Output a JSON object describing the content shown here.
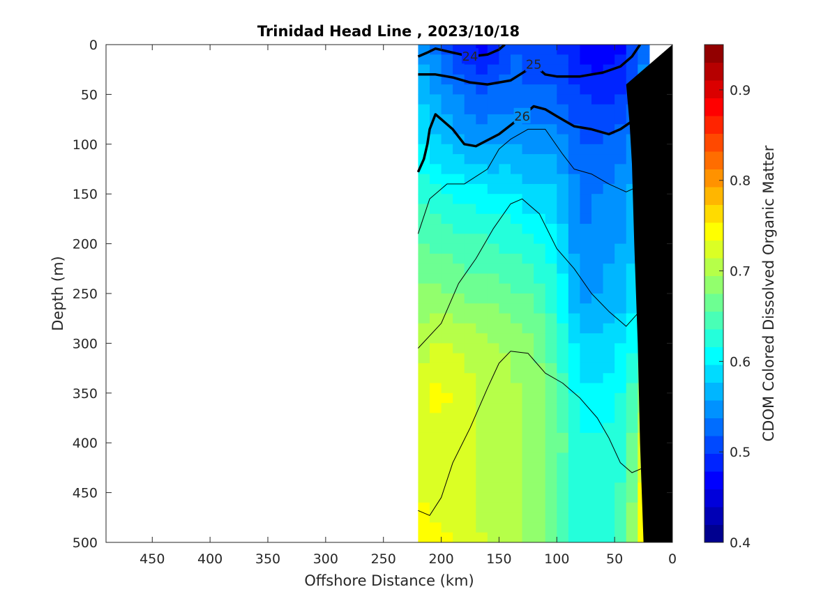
{
  "chart_data": {
    "type": "heatmap",
    "title": "Trinidad Head Line , 2023/10/18",
    "xlabel": "Offshore Distance (km)",
    "ylabel": "Depth (m)",
    "colorbar_label": "CDOM Colored Dissolved Organic Matter",
    "xlim": [
      490,
      0
    ],
    "ylim": [
      0,
      500
    ],
    "x_reversed": true,
    "y_reversed": true,
    "x_ticks": [
      "450",
      "400",
      "350",
      "300",
      "250",
      "200",
      "150",
      "100",
      "50",
      "0"
    ],
    "y_ticks": [
      "0",
      "50",
      "100",
      "150",
      "200",
      "250",
      "300",
      "350",
      "400",
      "450",
      "500"
    ],
    "colorbar_ticks": [
      "0.4",
      "0.5",
      "0.6",
      "0.7",
      "0.8",
      "0.9"
    ],
    "clim": [
      0.4,
      0.95
    ],
    "colormap": [
      "#00008f",
      "#0000b5",
      "#0000db",
      "#0000ff",
      "#0024ff",
      "#0049ff",
      "#006dff",
      "#0092ff",
      "#00b6ff",
      "#00dbff",
      "#00ffff",
      "#24ffdb",
      "#49ffb6",
      "#6dff92",
      "#92ff6d",
      "#b6ff49",
      "#dbff24",
      "#ffff00",
      "#ffdb00",
      "#ffb600",
      "#ff9200",
      "#ff6d00",
      "#ff4900",
      "#ff2400",
      "#ff0000",
      "#db0000",
      "#b60000",
      "#920000"
    ],
    "data_extent_km": [
      220,
      20
    ],
    "columns_km": [
      220,
      200,
      180,
      160,
      140,
      120,
      100,
      80,
      60,
      40,
      20
    ],
    "depths_m": [
      0,
      50,
      100,
      150,
      200,
      250,
      300,
      350,
      400,
      450,
      500
    ],
    "values": [
      [
        0.56,
        0.52,
        0.48,
        0.47,
        0.52,
        0.5,
        0.5,
        0.47,
        0.46,
        0.48,
        0.55
      ],
      [
        0.58,
        0.55,
        0.53,
        0.52,
        0.53,
        0.52,
        0.52,
        0.5,
        0.49,
        0.5,
        0.56
      ],
      [
        0.6,
        0.58,
        0.56,
        0.55,
        0.56,
        0.55,
        0.55,
        0.52,
        0.52,
        0.53,
        0.58
      ],
      [
        0.63,
        0.62,
        0.61,
        0.6,
        0.6,
        0.58,
        0.58,
        0.53,
        0.54,
        0.55,
        0.6
      ],
      [
        0.66,
        0.65,
        0.64,
        0.64,
        0.63,
        0.62,
        0.6,
        0.54,
        0.55,
        0.56,
        0.61
      ],
      [
        0.68,
        0.68,
        0.67,
        0.67,
        0.66,
        0.65,
        0.62,
        0.55,
        0.56,
        0.57,
        0.62
      ],
      [
        0.7,
        0.72,
        0.71,
        0.7,
        0.69,
        0.68,
        0.64,
        0.58,
        0.58,
        0.6,
        0.65
      ],
      [
        0.73,
        0.74,
        0.72,
        0.71,
        0.7,
        0.69,
        0.66,
        0.6,
        0.6,
        0.62,
        0.7
      ],
      [
        0.72,
        0.73,
        0.72,
        0.71,
        0.7,
        0.69,
        0.67,
        0.62,
        0.62,
        0.63,
        0.75
      ],
      [
        0.73,
        0.72,
        0.72,
        0.71,
        0.7,
        0.69,
        0.66,
        0.62,
        0.63,
        0.64,
        0.77
      ],
      [
        0.76,
        0.74,
        0.73,
        0.71,
        0.7,
        0.69,
        0.66,
        0.62,
        0.63,
        0.65,
        0.78
      ]
    ],
    "density_contours": [
      {
        "label": "24",
        "bold": true,
        "points": [
          [
            220,
            12
          ],
          [
            212,
            8
          ],
          [
            205,
            4
          ],
          [
            190,
            8
          ],
          [
            175,
            12
          ],
          [
            160,
            10
          ],
          [
            150,
            5
          ],
          [
            145,
            0
          ]
        ]
      },
      {
        "label": "25",
        "bold": true,
        "points": [
          [
            220,
            30
          ],
          [
            205,
            30
          ],
          [
            190,
            33
          ],
          [
            175,
            38
          ],
          [
            160,
            40
          ],
          [
            140,
            36
          ],
          [
            125,
            25
          ],
          [
            120,
            20
          ],
          [
            110,
            30
          ],
          [
            100,
            32
          ],
          [
            80,
            32
          ],
          [
            60,
            28
          ],
          [
            45,
            22
          ],
          [
            35,
            12
          ],
          [
            28,
            0
          ]
        ]
      },
      {
        "label": "26",
        "bold": true,
        "points": [
          [
            220,
            128
          ],
          [
            215,
            115
          ],
          [
            212,
            100
          ],
          [
            210,
            85
          ],
          [
            205,
            70
          ],
          [
            200,
            75
          ],
          [
            190,
            85
          ],
          [
            180,
            100
          ],
          [
            170,
            102
          ],
          [
            150,
            90
          ],
          [
            130,
            72
          ],
          [
            120,
            62
          ],
          [
            110,
            65
          ],
          [
            100,
            72
          ],
          [
            85,
            82
          ],
          [
            70,
            85
          ],
          [
            55,
            90
          ],
          [
            45,
            85
          ],
          [
            35,
            77
          ],
          [
            25,
            82
          ],
          [
            15,
            88
          ]
        ]
      },
      {
        "label": "",
        "bold": false,
        "points": [
          [
            220,
            190
          ],
          [
            210,
            155
          ],
          [
            195,
            140
          ],
          [
            180,
            140
          ],
          [
            160,
            125
          ],
          [
            150,
            105
          ],
          [
            140,
            95
          ],
          [
            125,
            85
          ],
          [
            110,
            85
          ],
          [
            95,
            110
          ],
          [
            85,
            125
          ],
          [
            70,
            130
          ],
          [
            55,
            140
          ],
          [
            40,
            148
          ],
          [
            25,
            140
          ]
        ]
      },
      {
        "label": "",
        "bold": false,
        "points": [
          [
            220,
            305
          ],
          [
            200,
            280
          ],
          [
            185,
            240
          ],
          [
            170,
            215
          ],
          [
            155,
            185
          ],
          [
            140,
            160
          ],
          [
            130,
            155
          ],
          [
            115,
            170
          ],
          [
            100,
            205
          ],
          [
            85,
            225
          ],
          [
            70,
            250
          ],
          [
            55,
            268
          ],
          [
            40,
            283
          ],
          [
            30,
            270
          ]
        ]
      },
      {
        "label": "",
        "bold": false,
        "points": [
          [
            220,
            468
          ],
          [
            210,
            473
          ],
          [
            200,
            455
          ],
          [
            190,
            420
          ],
          [
            175,
            385
          ],
          [
            160,
            345
          ],
          [
            150,
            320
          ],
          [
            140,
            308
          ],
          [
            125,
            310
          ],
          [
            110,
            330
          ],
          [
            95,
            340
          ],
          [
            80,
            355
          ],
          [
            65,
            375
          ],
          [
            55,
            395
          ],
          [
            45,
            420
          ],
          [
            35,
            430
          ],
          [
            25,
            425
          ]
        ]
      }
    ],
    "bathymetry": [
      [
        25,
        500
      ],
      [
        28,
        400
      ],
      [
        30,
        300
      ],
      [
        33,
        200
      ],
      [
        35,
        120
      ],
      [
        37,
        80
      ],
      [
        40,
        40
      ],
      [
        0,
        0
      ],
      [
        0,
        500
      ]
    ]
  }
}
